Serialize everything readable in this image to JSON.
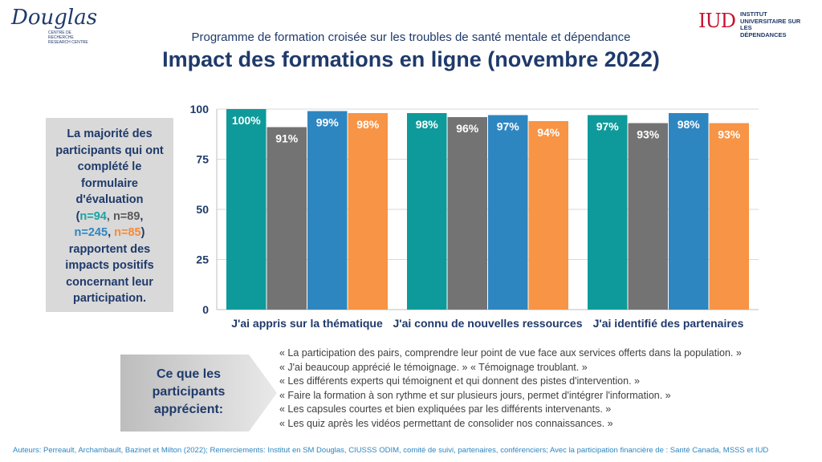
{
  "logos": {
    "douglas": {
      "name": "Douglas",
      "line1": "CENTRE DE RECHERCHE",
      "line2": "RESEARCH CENTRE"
    },
    "iud": {
      "mark": "IUD",
      "line1": "INSTITUT",
      "line2": "UNIVERSITAIRE SUR LES",
      "line3": "DÉPENDANCES"
    }
  },
  "subtitle": "Programme de formation croisée sur les troubles de santé mentale et dépendance",
  "title": "Impact des formations en ligne (novembre 2022)",
  "info_box": {
    "part1": "La majorité des participants qui ont complété le formulaire d'évaluation",
    "open": "(",
    "n1": "n=94",
    "sep1": ", ",
    "n2": "n=89",
    "sep2": ", ",
    "n3": "n=245",
    "sep3": ", ",
    "n4": "n=85",
    "close": ")",
    "part2": "rapportent des impacts positifs concernant leur participation."
  },
  "colors": {
    "teal": "#0e9a9a",
    "gray": "#737373",
    "blue": "#2e86c1",
    "orange": "#f79445"
  },
  "chart_data": {
    "type": "bar",
    "title": "",
    "xlabel": "",
    "ylabel": "",
    "ylim": [
      0,
      100
    ],
    "yticks": [
      0,
      25,
      50,
      75,
      100
    ],
    "grid": true,
    "categories": [
      "J'ai appris sur la thématique",
      "J'ai connu de nouvelles ressources",
      "J'ai identifié des partenaires"
    ],
    "series": [
      {
        "color": "#0e9a9a",
        "values": [
          100,
          98,
          97
        ],
        "labels": [
          "100%",
          "98%",
          "97%"
        ]
      },
      {
        "color": "#737373",
        "values": [
          91,
          96,
          93
        ],
        "labels": [
          "91%",
          "96%",
          "93%"
        ]
      },
      {
        "color": "#2e86c1",
        "values": [
          99,
          97,
          98
        ],
        "labels": [
          "99%",
          "97%",
          "98%"
        ]
      },
      {
        "color": "#f79445",
        "values": [
          98,
          94,
          93
        ],
        "labels": [
          "98%",
          "94%",
          "93%"
        ]
      }
    ]
  },
  "appreciate_label": "Ce que les participants apprécient:",
  "quotes": [
    "« La participation des pairs, comprendre leur point de vue face aux services offerts dans la population. »",
    "« J'ai beaucoup apprécié le témoignage. » « Témoignage troublant. »",
    "« Les différents experts qui témoignent et qui donnent des pistes d'intervention. »",
    "« Faire la formation à son rythme et sur plusieurs jours, permet d'intégrer l'information. »",
    "« Les capsules courtes et bien expliquées par les différents intervenants. »",
    "« Les quiz après les vidéos permettant de consolider nos connaissances. »"
  ],
  "footer": "Auteurs: Perreault, Archambault, Bazinet et Milton (2022); Remerciements: Institut en SM Douglas, CIUSSS ODIM,  comité de suivi, partenaires, conférenciers; Avec la participation financière de : Santé Canada, MSSS et IUD"
}
